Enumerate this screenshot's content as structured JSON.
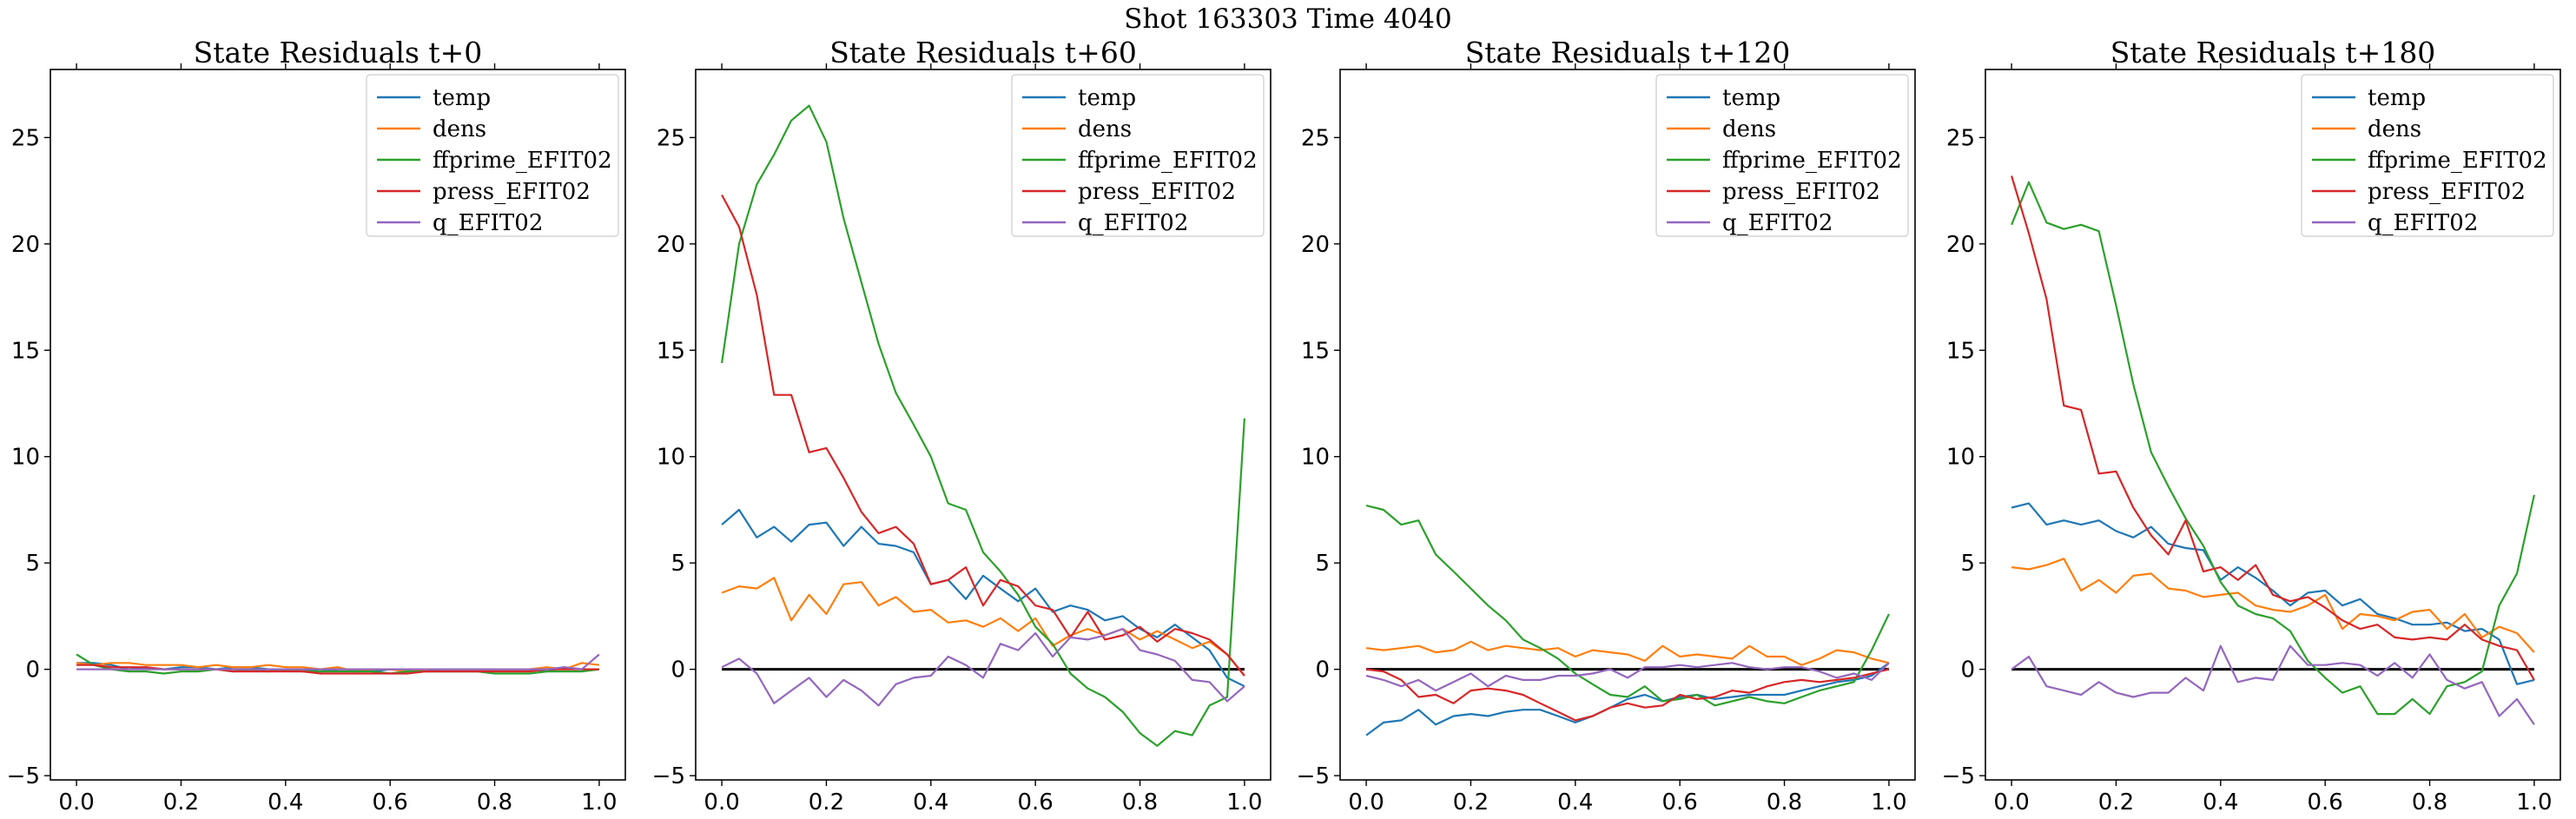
{
  "figure": {
    "suptitle": "Shot 163303   Time 4040"
  },
  "colors": {
    "temp": "#1f77b4",
    "dens": "#ff7f0e",
    "ffprime_EFIT02": "#2ca02c",
    "press_EFIT02": "#d62728",
    "q_EFIT02": "#9467bd",
    "zero_line": "#000000"
  },
  "chart_data": [
    {
      "type": "line",
      "title": "State Residuals t+0",
      "xlabel": "",
      "ylabel": "",
      "xlim": [
        -0.05,
        1.05
      ],
      "ylim": [
        -5.2,
        28.2
      ],
      "xticks": [
        "0.0",
        "0.2",
        "0.4",
        "0.6",
        "0.8",
        "1.0"
      ],
      "yticks": [
        "−5",
        "0",
        "5",
        "10",
        "15",
        "20",
        "25"
      ],
      "grid": false,
      "legend_position": "top-right",
      "zero_line": false,
      "x": [
        0.0,
        0.033,
        0.067,
        0.1,
        0.133,
        0.167,
        0.2,
        0.233,
        0.267,
        0.3,
        0.333,
        0.367,
        0.4,
        0.433,
        0.467,
        0.5,
        0.533,
        0.567,
        0.6,
        0.633,
        0.667,
        0.7,
        0.733,
        0.767,
        0.8,
        0.833,
        0.867,
        0.9,
        0.933,
        0.967,
        1.0
      ],
      "series": [
        {
          "name": "temp",
          "values": [
            0.3,
            0.3,
            0.2,
            0.0,
            0.1,
            0.0,
            0.1,
            0.1,
            0.0,
            0.1,
            0.1,
            0.0,
            0.0,
            0.0,
            -0.1,
            0.0,
            0.0,
            -0.1,
            0.0,
            0.0,
            -0.1,
            0.0,
            0.0,
            0.0,
            0.0,
            0.0,
            0.0,
            -0.1,
            0.1,
            0.0,
            0.0
          ]
        },
        {
          "name": "dens",
          "values": [
            0.3,
            0.2,
            0.3,
            0.3,
            0.2,
            0.2,
            0.2,
            0.1,
            0.2,
            0.1,
            0.1,
            0.2,
            0.1,
            0.1,
            0.0,
            0.1,
            -0.1,
            0.0,
            0.0,
            -0.1,
            0.0,
            0.0,
            0.0,
            0.0,
            0.0,
            0.0,
            0.0,
            0.1,
            0.0,
            0.3,
            0.2
          ]
        },
        {
          "name": "ffprime_EFIT02",
          "values": [
            0.7,
            0.2,
            0.0,
            -0.1,
            -0.1,
            -0.2,
            -0.1,
            -0.1,
            0.0,
            -0.1,
            0.0,
            -0.1,
            0.0,
            -0.1,
            -0.1,
            -0.1,
            -0.1,
            -0.1,
            -0.2,
            -0.1,
            -0.1,
            -0.1,
            -0.1,
            -0.1,
            -0.2,
            -0.2,
            -0.2,
            -0.1,
            -0.1,
            -0.1,
            0.0
          ]
        },
        {
          "name": "press_EFIT02",
          "values": [
            0.2,
            0.2,
            0.1,
            0.1,
            0.1,
            0.0,
            0.0,
            0.0,
            0.0,
            -0.1,
            -0.1,
            -0.1,
            -0.1,
            -0.1,
            -0.2,
            -0.2,
            -0.2,
            -0.2,
            -0.2,
            -0.2,
            -0.1,
            -0.1,
            -0.1,
            -0.1,
            -0.1,
            -0.1,
            -0.1,
            0.0,
            0.0,
            0.0,
            0.0
          ]
        },
        {
          "name": "q_EFIT02",
          "values": [
            0.0,
            0.0,
            0.0,
            0.0,
            0.0,
            0.0,
            0.0,
            0.0,
            0.0,
            0.0,
            0.0,
            0.0,
            0.0,
            0.0,
            0.0,
            0.0,
            0.0,
            0.0,
            0.0,
            0.0,
            0.0,
            0.0,
            0.0,
            0.0,
            0.0,
            0.0,
            0.0,
            0.0,
            0.1,
            0.0,
            0.7
          ]
        }
      ]
    },
    {
      "type": "line",
      "title": "State Residuals t+60",
      "xlabel": "",
      "ylabel": "",
      "xlim": [
        -0.05,
        1.05
      ],
      "ylim": [
        -5.2,
        28.2
      ],
      "xticks": [
        "0.0",
        "0.2",
        "0.4",
        "0.6",
        "0.8",
        "1.0"
      ],
      "yticks": [
        "−5",
        "0",
        "5",
        "10",
        "15",
        "20",
        "25"
      ],
      "grid": false,
      "legend_position": "top-right",
      "zero_line": true,
      "x": [
        0.0,
        0.033,
        0.067,
        0.1,
        0.133,
        0.167,
        0.2,
        0.233,
        0.267,
        0.3,
        0.333,
        0.367,
        0.4,
        0.433,
        0.467,
        0.5,
        0.533,
        0.567,
        0.6,
        0.633,
        0.667,
        0.7,
        0.733,
        0.767,
        0.8,
        0.833,
        0.867,
        0.9,
        0.933,
        0.967,
        1.0
      ],
      "series": [
        {
          "name": "temp",
          "values": [
            6.8,
            7.5,
            6.2,
            6.7,
            6.0,
            6.8,
            6.9,
            5.8,
            6.7,
            5.9,
            5.8,
            5.5,
            4.0,
            4.2,
            3.3,
            4.4,
            3.8,
            3.2,
            3.8,
            2.7,
            3.0,
            2.8,
            2.3,
            2.5,
            1.9,
            1.5,
            2.1,
            1.5,
            0.9,
            -0.4,
            -0.8
          ]
        },
        {
          "name": "dens",
          "values": [
            3.6,
            3.9,
            3.8,
            4.3,
            2.3,
            3.5,
            2.6,
            4.0,
            4.1,
            3.0,
            3.4,
            2.7,
            2.8,
            2.2,
            2.3,
            2.0,
            2.4,
            1.8,
            2.4,
            1.1,
            1.6,
            1.9,
            1.6,
            1.9,
            1.4,
            1.8,
            1.4,
            1.0,
            1.3,
            0.7,
            -0.3
          ]
        },
        {
          "name": "ffprime_EFIT02",
          "values": [
            14.4,
            20.0,
            22.8,
            24.2,
            25.8,
            26.5,
            24.8,
            21.2,
            18.2,
            15.3,
            13.0,
            11.5,
            10.0,
            7.8,
            7.5,
            5.5,
            4.6,
            3.5,
            2.0,
            1.2,
            -0.2,
            -0.9,
            -1.3,
            -2.0,
            -3.0,
            -3.6,
            -2.9,
            -3.1,
            -1.7,
            -1.3,
            11.8
          ]
        },
        {
          "name": "press_EFIT02",
          "values": [
            22.3,
            20.8,
            17.6,
            12.9,
            12.9,
            10.2,
            10.4,
            9.0,
            7.4,
            6.4,
            6.7,
            5.9,
            4.0,
            4.2,
            4.8,
            3.0,
            4.2,
            3.9,
            3.0,
            2.8,
            1.5,
            2.7,
            1.4,
            1.6,
            2.0,
            1.3,
            1.9,
            1.7,
            1.4,
            0.7,
            -0.3
          ]
        },
        {
          "name": "q_EFIT02",
          "values": [
            0.1,
            0.5,
            -0.2,
            -1.6,
            -1.0,
            -0.4,
            -1.3,
            -0.5,
            -1.0,
            -1.7,
            -0.7,
            -0.4,
            -0.3,
            0.6,
            0.2,
            -0.4,
            1.2,
            0.9,
            1.7,
            0.6,
            1.5,
            1.4,
            1.6,
            1.9,
            0.9,
            0.7,
            0.4,
            -0.5,
            -0.6,
            -1.5,
            -0.8
          ]
        }
      ]
    },
    {
      "type": "line",
      "title": "State Residuals t+120",
      "xlabel": "",
      "ylabel": "",
      "xlim": [
        -0.05,
        1.05
      ],
      "ylim": [
        -5.2,
        28.2
      ],
      "xticks": [
        "0.0",
        "0.2",
        "0.4",
        "0.6",
        "0.8",
        "1.0"
      ],
      "yticks": [
        "−5",
        "0",
        "5",
        "10",
        "15",
        "20",
        "25"
      ],
      "grid": false,
      "legend_position": "top-right",
      "zero_line": true,
      "x": [
        0.0,
        0.033,
        0.067,
        0.1,
        0.133,
        0.167,
        0.2,
        0.233,
        0.267,
        0.3,
        0.333,
        0.367,
        0.4,
        0.433,
        0.467,
        0.5,
        0.533,
        0.567,
        0.6,
        0.633,
        0.667,
        0.7,
        0.733,
        0.767,
        0.8,
        0.833,
        0.867,
        0.9,
        0.933,
        0.967,
        1.0
      ],
      "series": [
        {
          "name": "temp",
          "values": [
            -3.1,
            -2.5,
            -2.4,
            -1.9,
            -2.6,
            -2.2,
            -2.1,
            -2.2,
            -2.0,
            -1.9,
            -1.9,
            -2.2,
            -2.5,
            -2.2,
            -1.8,
            -1.4,
            -1.2,
            -1.5,
            -1.3,
            -1.2,
            -1.4,
            -1.3,
            -1.2,
            -1.2,
            -1.2,
            -1.0,
            -0.8,
            -0.6,
            -0.5,
            -0.3,
            0.3
          ]
        },
        {
          "name": "dens",
          "values": [
            1.0,
            0.9,
            1.0,
            1.1,
            0.8,
            0.9,
            1.3,
            0.9,
            1.1,
            1.0,
            0.9,
            1.0,
            0.6,
            0.9,
            0.8,
            0.7,
            0.4,
            1.1,
            0.6,
            0.7,
            0.6,
            0.5,
            1.1,
            0.6,
            0.6,
            0.2,
            0.5,
            0.9,
            0.8,
            0.5,
            0.3
          ]
        },
        {
          "name": "ffprime_EFIT02",
          "values": [
            7.7,
            7.5,
            6.8,
            7.0,
            5.4,
            4.6,
            3.8,
            3.0,
            2.3,
            1.4,
            1.0,
            0.5,
            -0.2,
            -0.7,
            -1.2,
            -1.3,
            -0.8,
            -1.5,
            -1.4,
            -1.2,
            -1.7,
            -1.5,
            -1.3,
            -1.5,
            -1.6,
            -1.3,
            -1.0,
            -0.8,
            -0.6,
            0.9,
            2.6
          ]
        },
        {
          "name": "press_EFIT02",
          "values": [
            0.0,
            -0.1,
            -0.5,
            -1.3,
            -1.2,
            -1.6,
            -1.0,
            -0.9,
            -1.0,
            -1.2,
            -1.6,
            -2.0,
            -2.4,
            -2.2,
            -1.8,
            -1.6,
            -1.8,
            -1.7,
            -1.2,
            -1.4,
            -1.3,
            -1.0,
            -1.1,
            -0.8,
            -0.6,
            -0.5,
            -0.6,
            -0.5,
            -0.4,
            -0.2,
            0.0
          ]
        },
        {
          "name": "q_EFIT02",
          "values": [
            -0.3,
            -0.5,
            -0.8,
            -0.5,
            -1.0,
            -0.6,
            -0.2,
            -0.8,
            -0.3,
            -0.5,
            -0.5,
            -0.3,
            -0.3,
            -0.2,
            0.0,
            -0.4,
            0.1,
            0.1,
            0.2,
            0.1,
            0.2,
            0.3,
            0.1,
            0.0,
            0.1,
            0.1,
            -0.1,
            -0.4,
            -0.2,
            -0.5,
            0.3
          ]
        }
      ]
    },
    {
      "type": "line",
      "title": "State Residuals t+180",
      "xlabel": "",
      "ylabel": "",
      "xlim": [
        -0.05,
        1.05
      ],
      "ylim": [
        -5.2,
        28.2
      ],
      "xticks": [
        "0.0",
        "0.2",
        "0.4",
        "0.6",
        "0.8",
        "1.0"
      ],
      "yticks": [
        "−5",
        "0",
        "5",
        "10",
        "15",
        "20",
        "25"
      ],
      "grid": false,
      "legend_position": "top-right",
      "zero_line": true,
      "x": [
        0.0,
        0.033,
        0.067,
        0.1,
        0.133,
        0.167,
        0.2,
        0.233,
        0.267,
        0.3,
        0.333,
        0.367,
        0.4,
        0.433,
        0.467,
        0.5,
        0.533,
        0.567,
        0.6,
        0.633,
        0.667,
        0.7,
        0.733,
        0.767,
        0.8,
        0.833,
        0.867,
        0.9,
        0.933,
        0.967,
        1.0
      ],
      "series": [
        {
          "name": "temp",
          "values": [
            7.6,
            7.8,
            6.8,
            7.0,
            6.8,
            7.0,
            6.5,
            6.2,
            6.7,
            5.9,
            5.7,
            5.6,
            4.2,
            4.8,
            4.3,
            3.7,
            3.0,
            3.6,
            3.7,
            3.0,
            3.3,
            2.6,
            2.4,
            2.1,
            2.1,
            2.2,
            1.8,
            1.9,
            1.4,
            -0.7,
            -0.5
          ]
        },
        {
          "name": "dens",
          "values": [
            4.8,
            4.7,
            4.9,
            5.2,
            3.7,
            4.2,
            3.6,
            4.4,
            4.5,
            3.8,
            3.7,
            3.4,
            3.5,
            3.6,
            3.0,
            2.8,
            2.7,
            3.0,
            3.5,
            1.9,
            2.6,
            2.5,
            2.3,
            2.7,
            2.8,
            1.9,
            2.6,
            1.5,
            2.0,
            1.7,
            0.8
          ]
        },
        {
          "name": "ffprime_EFIT02",
          "values": [
            20.9,
            22.9,
            21.0,
            20.7,
            20.9,
            20.6,
            17.1,
            13.4,
            10.2,
            8.6,
            7.1,
            5.8,
            4.1,
            3.0,
            2.6,
            2.4,
            1.8,
            0.4,
            -0.4,
            -1.1,
            -0.8,
            -2.1,
            -2.1,
            -1.4,
            -2.1,
            -0.8,
            -0.6,
            -0.1,
            3.0,
            4.5,
            8.2
          ]
        },
        {
          "name": "press_EFIT02",
          "values": [
            23.2,
            20.5,
            17.4,
            12.4,
            12.2,
            9.2,
            9.3,
            7.6,
            6.3,
            5.4,
            7.0,
            4.6,
            4.8,
            4.2,
            4.9,
            3.5,
            3.2,
            3.4,
            2.9,
            2.3,
            1.9,
            2.1,
            1.5,
            1.4,
            1.5,
            1.4,
            2.1,
            1.4,
            1.1,
            0.9,
            -0.5
          ]
        },
        {
          "name": "q_EFIT02",
          "values": [
            0.0,
            0.6,
            -0.8,
            -1.0,
            -1.2,
            -0.6,
            -1.1,
            -1.3,
            -1.1,
            -1.1,
            -0.4,
            -1.0,
            1.1,
            -0.6,
            -0.4,
            -0.5,
            1.1,
            0.2,
            0.2,
            0.3,
            0.2,
            -0.3,
            0.3,
            -0.4,
            0.7,
            -0.5,
            -0.9,
            -0.6,
            -2.2,
            -1.4,
            -2.6
          ]
        }
      ]
    }
  ]
}
